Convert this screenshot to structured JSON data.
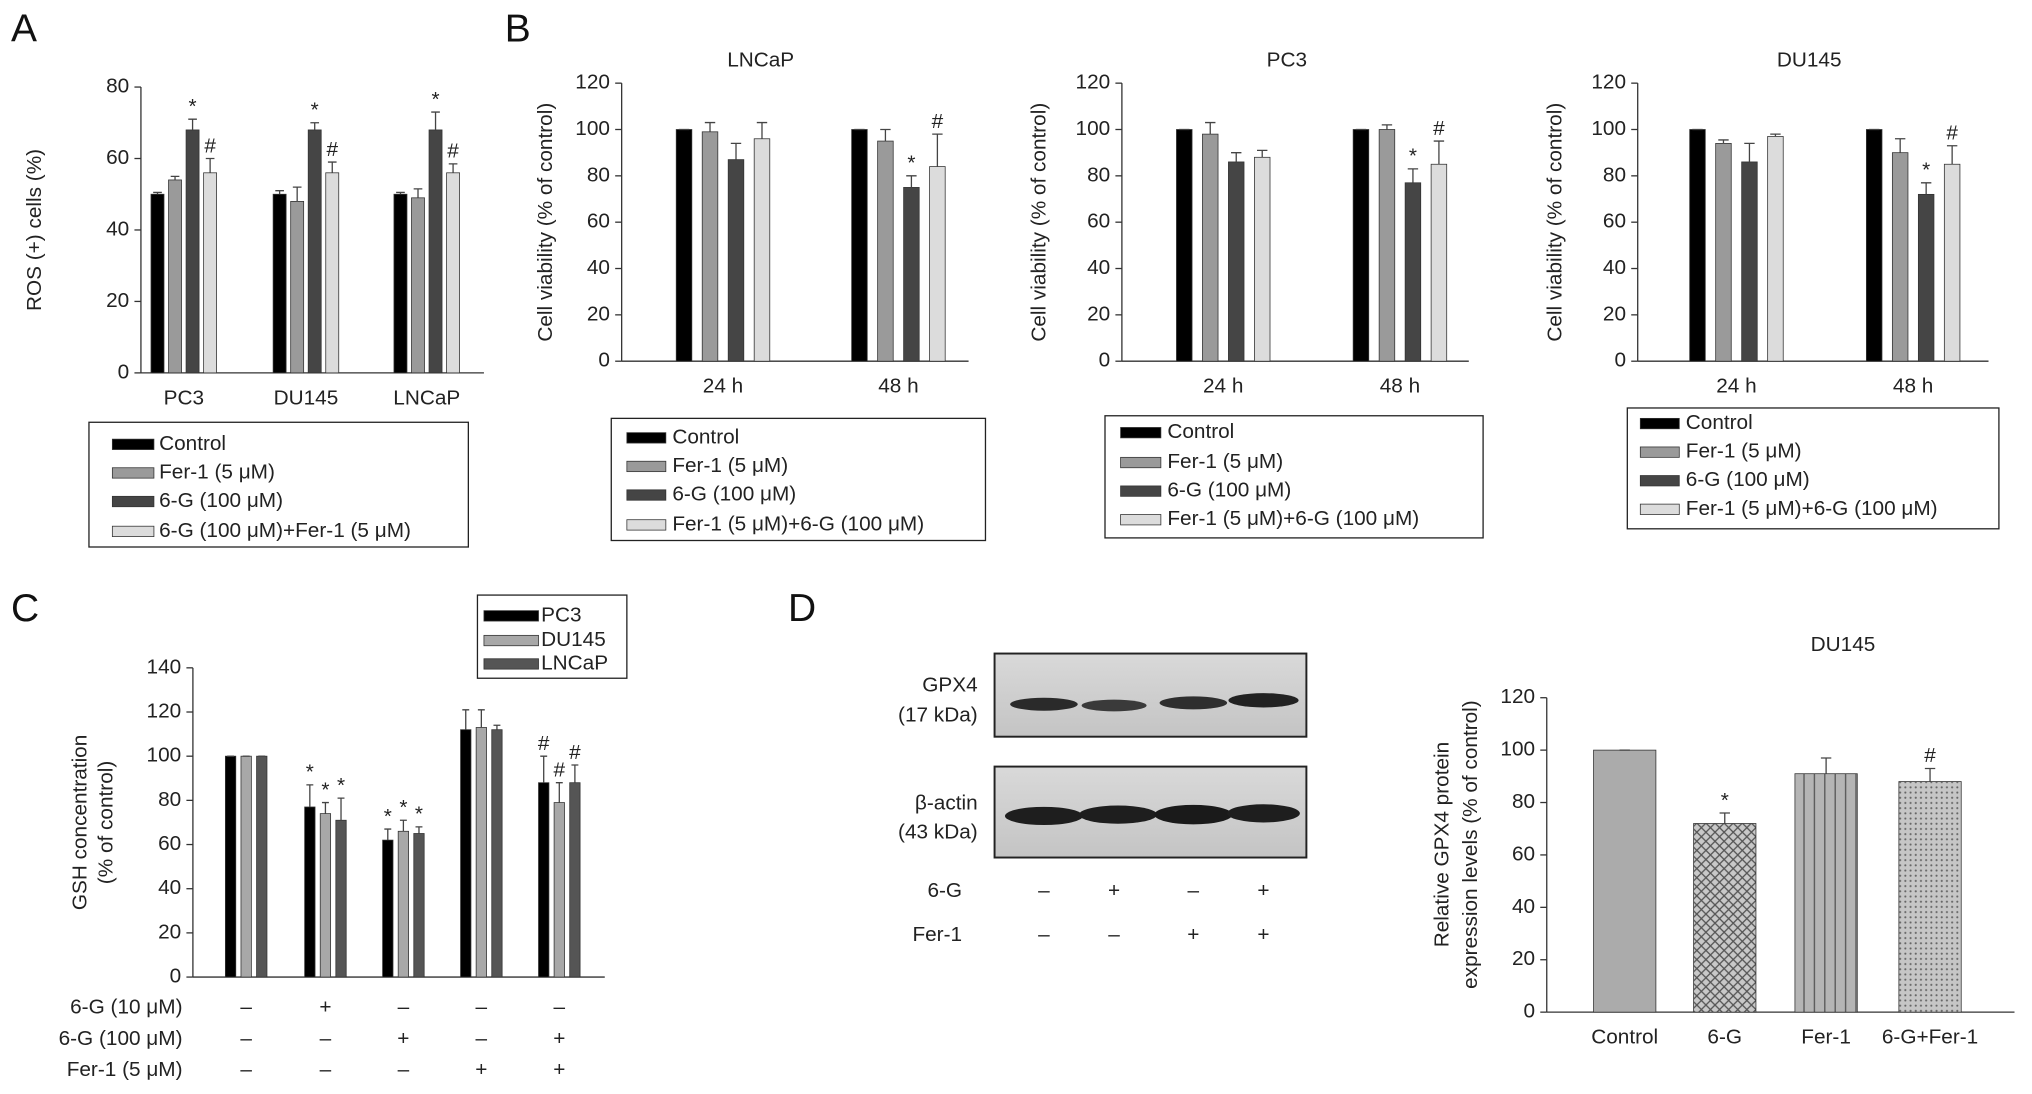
{
  "panel_labels": [
    "A",
    "B",
    "C",
    "D"
  ],
  "chart_data": [
    {
      "type": "bar",
      "ylabel": [
        "ROS (+) cells (%)"
      ],
      "categories": [
        "PC3",
        "DU145",
        "LNCaP"
      ],
      "ylim": [
        0,
        80
      ],
      "yticks": [
        0,
        20,
        40,
        60,
        80
      ],
      "series": [
        {
          "name": "Control",
          "color": "#000000",
          "values": [
            50,
            50,
            50
          ],
          "errors": [
            0.5,
            1,
            0.5
          ],
          "markers": [
            null,
            null,
            null
          ]
        },
        {
          "name": "Fer-1 (5 μM)",
          "color": "#9a9a9a",
          "values": [
            54,
            48,
            49
          ],
          "errors": [
            1,
            4,
            2.5
          ],
          "markers": [
            null,
            null,
            null
          ]
        },
        {
          "name": "6-G (100 μM)",
          "color": "#454545",
          "values": [
            68,
            68,
            68
          ],
          "errors": [
            3,
            2,
            5
          ],
          "markers": [
            "*",
            "*",
            "*"
          ]
        },
        {
          "name": "6-G (100 μM)+Fer-1 (5 μM)",
          "color": "#dcdcdc",
          "values": [
            56,
            56,
            56
          ],
          "errors": [
            4,
            3,
            2.5
          ],
          "markers": [
            "#",
            "#",
            "#"
          ]
        }
      ]
    },
    {
      "type": "bar",
      "title": "LNCaP",
      "ylabel": [
        "Cell viability (% of control)"
      ],
      "categories": [
        "24 h",
        "48 h"
      ],
      "ylim": [
        0,
        120
      ],
      "yticks": [
        0,
        20,
        40,
        60,
        80,
        100,
        120
      ],
      "series": [
        {
          "name": "Control",
          "color": "#000000",
          "values": [
            100,
            100
          ],
          "errors": [
            0,
            0
          ],
          "markers": [
            null,
            null
          ]
        },
        {
          "name": "Fer-1 (5 μM)",
          "color": "#9a9a9a",
          "values": [
            99,
            95
          ],
          "errors": [
            4,
            5
          ],
          "markers": [
            null,
            null
          ]
        },
        {
          "name": "6-G (100 μM)",
          "color": "#454545",
          "values": [
            87,
            75
          ],
          "errors": [
            7,
            5
          ],
          "markers": [
            null,
            "*"
          ]
        },
        {
          "name": "Fer-1 (5 μM)+6-G (100 μM)",
          "color": "#dcdcdc",
          "values": [
            96,
            84
          ],
          "errors": [
            7,
            14
          ],
          "markers": [
            null,
            "#"
          ]
        }
      ]
    },
    {
      "type": "bar",
      "title": "PC3",
      "ylabel": [
        "Cell viability (% of control)"
      ],
      "categories": [
        "24 h",
        "48 h"
      ],
      "ylim": [
        0,
        120
      ],
      "yticks": [
        0,
        20,
        40,
        60,
        80,
        100,
        120
      ],
      "series": [
        {
          "name": "Control",
          "color": "#000000",
          "values": [
            100,
            100
          ],
          "errors": [
            0,
            0
          ],
          "markers": [
            null,
            null
          ]
        },
        {
          "name": "Fer-1 (5 μM)",
          "color": "#9a9a9a",
          "values": [
            98,
            100
          ],
          "errors": [
            5,
            2
          ],
          "markers": [
            null,
            null
          ]
        },
        {
          "name": "6-G (100 μM)",
          "color": "#454545",
          "values": [
            86,
            77
          ],
          "errors": [
            4,
            6
          ],
          "markers": [
            null,
            "*"
          ]
        },
        {
          "name": "Fer-1 (5 μM)+6-G (100 μM)",
          "color": "#dcdcdc",
          "values": [
            88,
            85
          ],
          "errors": [
            3,
            10
          ],
          "markers": [
            null,
            "#"
          ]
        }
      ]
    },
    {
      "type": "bar",
      "title": "DU145",
      "ylabel": [
        "Cell viability (% of control)"
      ],
      "categories": [
        "24 h",
        "48 h"
      ],
      "ylim": [
        0,
        120
      ],
      "yticks": [
        0,
        20,
        40,
        60,
        80,
        100,
        120
      ],
      "series": [
        {
          "name": "Control",
          "color": "#000000",
          "values": [
            100,
            100
          ],
          "errors": [
            0,
            0
          ],
          "markers": [
            null,
            null
          ]
        },
        {
          "name": "Fer-1 (5 μM)",
          "color": "#9a9a9a",
          "values": [
            94,
            90
          ],
          "errors": [
            1.5,
            6
          ],
          "markers": [
            null,
            null
          ]
        },
        {
          "name": "6-G (100 μM)",
          "color": "#454545",
          "values": [
            86,
            72
          ],
          "errors": [
            8,
            5
          ],
          "markers": [
            null,
            "*"
          ]
        },
        {
          "name": "Fer-1 (5 μM)+6-G (100 μM)",
          "color": "#dcdcdc",
          "values": [
            97,
            85
          ],
          "errors": [
            1,
            8
          ],
          "markers": [
            null,
            "#"
          ]
        }
      ]
    },
    {
      "type": "bar",
      "ylabel": [
        "GSH concentration",
        "(% of control)"
      ],
      "categories": [
        null,
        null,
        null,
        null,
        null
      ],
      "ylim": [
        0,
        140
      ],
      "yticks": [
        0,
        20,
        40,
        60,
        80,
        100,
        120,
        140
      ],
      "series": [
        {
          "name": "PC3",
          "color": "#000000",
          "values": [
            100,
            77,
            62,
            112,
            88
          ],
          "errors": [
            0,
            10,
            5,
            9,
            12
          ],
          "markers": [
            null,
            "*",
            "*",
            null,
            "#"
          ]
        },
        {
          "name": "DU145",
          "color": "#a8a8a8",
          "values": [
            100,
            74,
            66,
            113,
            79
          ],
          "errors": [
            0,
            5,
            5,
            8,
            9
          ],
          "markers": [
            null,
            "*",
            "*",
            null,
            "#"
          ]
        },
        {
          "name": "LNCaP",
          "color": "#555555",
          "values": [
            100,
            71,
            65,
            112,
            88
          ],
          "errors": [
            0,
            10,
            3,
            2,
            8
          ],
          "markers": [
            null,
            "*",
            "*",
            null,
            "#"
          ]
        }
      ],
      "conditions": [
        {
          "label": "6-G (10 μM)",
          "values": [
            "–",
            "+",
            "–",
            "–",
            "–"
          ]
        },
        {
          "label": "6-G (100 μM)",
          "values": [
            "–",
            "–",
            "+",
            "–",
            "+"
          ]
        },
        {
          "label": "Fer-1 (5 μM)",
          "values": [
            "–",
            "–",
            "–",
            "+",
            "+"
          ]
        }
      ]
    },
    {
      "type": "bar",
      "title": "DU145",
      "ylabel": [
        "Relative GPX4 protein",
        "expression levels (% of control)"
      ],
      "categories": [
        "Control",
        "6-G",
        "Fer-1",
        "6-G+Fer-1"
      ],
      "ylim": [
        0,
        120
      ],
      "yticks": [
        0,
        20,
        40,
        60,
        80,
        100,
        120
      ],
      "color": "#ababab",
      "patterns": [
        "solid",
        "crosshatch",
        "vertical",
        "dots"
      ],
      "values": [
        100,
        72,
        91,
        88
      ],
      "errors": [
        0,
        4,
        6,
        5
      ],
      "markers": [
        null,
        "*",
        null,
        "#"
      ]
    }
  ],
  "blot": {
    "bands": [
      {
        "label": "GPX4",
        "size": "(17 kDa)"
      },
      {
        "label": "β-actin",
        "size": "(43 kDa)"
      }
    ],
    "conditions": [
      {
        "label": "6-G",
        "values": [
          "–",
          "+",
          "–",
          "+"
        ]
      },
      {
        "label": "Fer-1",
        "values": [
          "–",
          "–",
          "+",
          "+"
        ]
      }
    ]
  }
}
